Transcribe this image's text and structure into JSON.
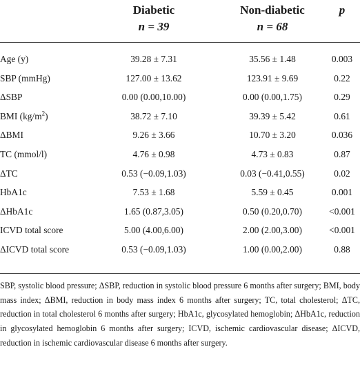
{
  "header": {
    "diabetic": "Diabetic",
    "diabetic_n": "n = 39",
    "nondiabetic": "Non-diabetic",
    "nondiabetic_n": "n = 68",
    "p": "p"
  },
  "rows": [
    {
      "label": "Age (y)",
      "diabetic": "39.28 ± 7.31",
      "nondiabetic": "35.56 ± 1.48",
      "p": "0.003"
    },
    {
      "label": "SBP (mmHg)",
      "diabetic": "127.00 ± 13.62",
      "nondiabetic": "123.91 ± 9.69",
      "p": "0.22"
    },
    {
      "label": "ΔSBP",
      "diabetic": "0.00 (0.00,10.00)",
      "nondiabetic": "0.00 (0.00,1.75)",
      "p": "0.29"
    },
    {
      "label_pre": "BMI (kg/m",
      "label_sup": "2",
      "label_post": ")",
      "diabetic": "38.72 ± 7.10",
      "nondiabetic": "39.39 ± 5.42",
      "p": "0.61"
    },
    {
      "label": "ΔBMI",
      "diabetic": "9.26 ± 3.66",
      "nondiabetic": "10.70 ± 3.20",
      "p": "0.036"
    },
    {
      "label": "TC (mmol/l)",
      "diabetic": "4.76 ± 0.98",
      "nondiabetic": "4.73 ± 0.83",
      "p": "0.87"
    },
    {
      "label": "ΔTC",
      "diabetic": "0.53 (−0.09,1.03)",
      "nondiabetic": "0.03 (−0.41,0.55)",
      "p": "0.02"
    },
    {
      "label": "HbA1c",
      "diabetic": "7.53 ± 1.68",
      "nondiabetic": "5.59 ± 0.45",
      "p": "0.001"
    },
    {
      "label": "ΔHbA1c",
      "diabetic": "1.65 (0.87,3.05)",
      "nondiabetic": "0.50 (0.20,0.70)",
      "p": "<0.001"
    },
    {
      "label": "ICVD total score",
      "diabetic": "5.00 (4.00,6.00)",
      "nondiabetic": "2.00 (2.00,3.00)",
      "p": "<0.001"
    },
    {
      "label": "ΔICVD total score",
      "diabetic": "0.53 (−0.09,1.03)",
      "nondiabetic": "1.00 (0.00,2.00)",
      "p": "0.88"
    }
  ],
  "footnote": "SBP, systolic blood pressure; ΔSBP, reduction in systolic blood pressure 6 months after surgery; BMI, body mass index; ΔBMI, reduction in body mass index 6 months after surgery; TC, total cholesterol; ΔTC, reduction in total cholesterol 6 months after surgery; HbA1c, glycosylated hemoglobin; ΔHbA1c, reduction in glycosylated hemoglobin 6 months after surgery; ICVD, ischemic cardiovascular disease; ΔICVD, reduction in ischemic cardiovascular disease 6 months after surgery."
}
